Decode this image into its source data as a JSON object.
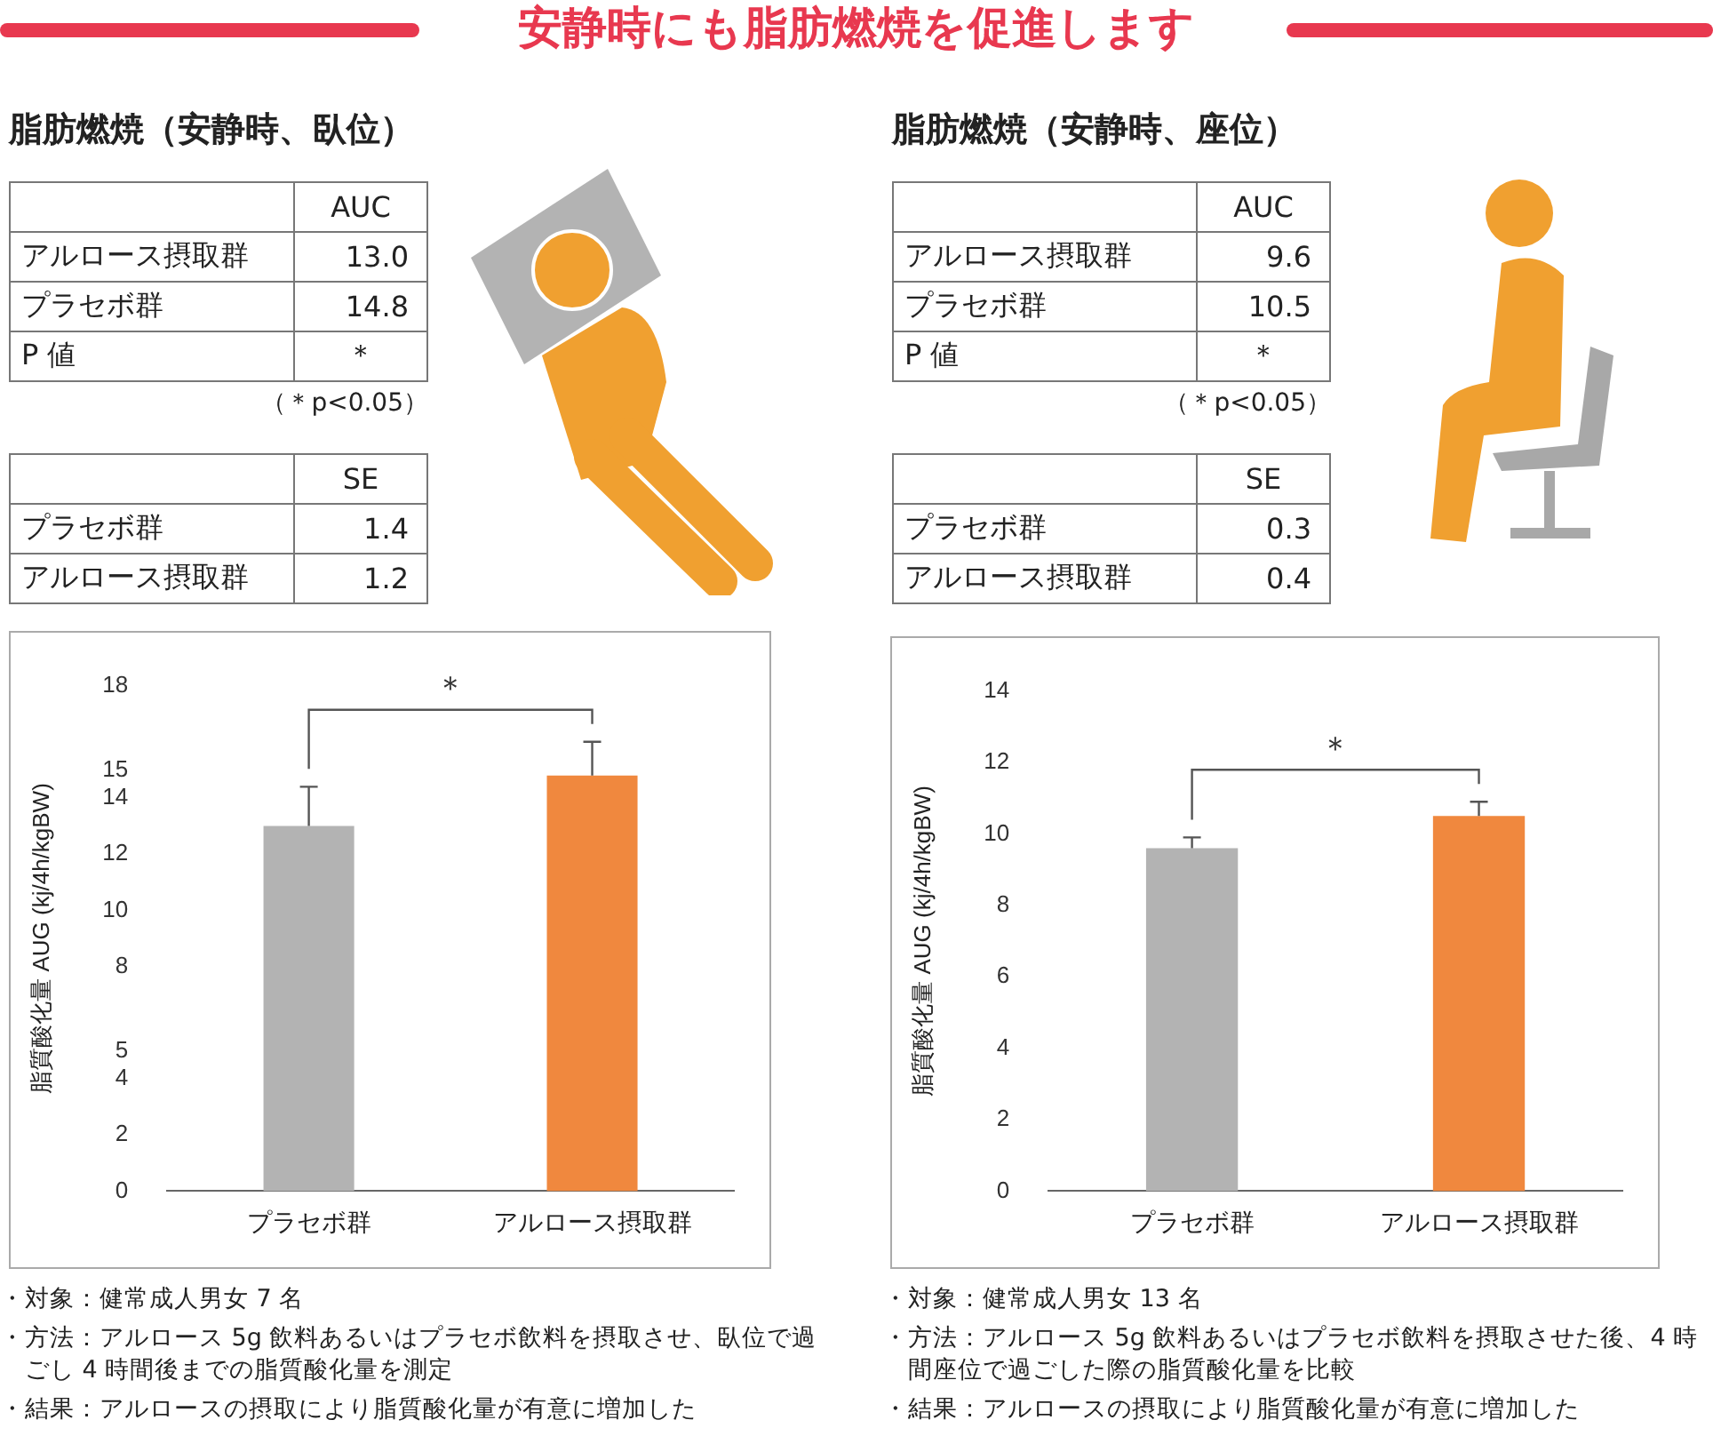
{
  "chart_data": [
    {
      "type": "other",
      "title": "安静時にも脂肪燃焼を促進します",
      "color": "#e8384f"
    },
    {
      "type": "other",
      "title": "脂肪燃焼（安静時、臥位）",
      "categories": [
        "AUC"
      ],
      "y_categories": [
        "アルロース摂取群",
        "プラセボ群",
        "P 値"
      ],
      "cell_labels": [
        [
          "13.0"
        ],
        [
          "14.8"
        ],
        [
          "＊"
        ]
      ],
      "annotations": [
        "（＊p<0.05）"
      ]
    },
    {
      "type": "other",
      "categories": [
        "SE"
      ],
      "y_categories": [
        "プラセボ群",
        "アルロース摂取群"
      ],
      "cell_labels": [
        [
          "1.4"
        ],
        [
          "1.2"
        ]
      ]
    },
    {
      "type": "bar",
      "ylabel": "脂質酸化量 AUG (kj/4h/kgBW)",
      "categories": [
        "プラセボ群",
        "アルロース摂取群"
      ],
      "values": [
        13.0,
        14.8
      ],
      "errors": [
        1.4,
        1.2
      ],
      "colors": [
        "#b3b3b3",
        "#f0883e"
      ],
      "ylim": [
        0,
        18
      ],
      "yticks": [
        0,
        2,
        4,
        5,
        8,
        10,
        12,
        14,
        15,
        18
      ],
      "grid": false,
      "legend": false,
      "annotations": [
        "＊",
        "・対象：健常成人男女 7 名",
        "・方法：アルロース 5g 飲料あるいはプラセボ飲料を摂取させ、臥位で過ごし 4 時間後までの脂質酸化量を測定",
        "・結果：アルロースの摂取により脂質酸化量が有意に増加した"
      ]
    },
    {
      "type": "other",
      "title": "脂肪燃焼（安静時、座位）",
      "categories": [
        "AUC"
      ],
      "y_categories": [
        "アルロース摂取群",
        "プラセボ群",
        "P 値"
      ],
      "cell_labels": [
        [
          "9.6"
        ],
        [
          "10.5"
        ],
        [
          "＊"
        ]
      ],
      "annotations": [
        "（＊p<0.05）"
      ]
    },
    {
      "type": "other",
      "categories": [
        "SE"
      ],
      "y_categories": [
        "プラセボ群",
        "アルロース摂取群"
      ],
      "cell_labels": [
        [
          "0.3"
        ],
        [
          "0.4"
        ]
      ]
    },
    {
      "type": "bar",
      "ylabel": "脂質酸化量 AUG (kj/4h/kgBW)",
      "categories": [
        "プラセボ群",
        "アルロース摂取群"
      ],
      "values": [
        9.6,
        10.5
      ],
      "errors": [
        0.3,
        0.4
      ],
      "colors": [
        "#b3b3b3",
        "#f0883e"
      ],
      "ylim": [
        0,
        14
      ],
      "yticks": [
        0,
        2,
        4,
        6,
        8,
        10,
        12,
        14
      ],
      "grid": false,
      "legend": false,
      "annotations": [
        "＊",
        "・対象：健常成人男女 13 名",
        "・方法：アルロース 5g 飲料あるいはプラセボ飲料を摂取させた後、4 時間座位で過ごした際の脂質酸化量を比較",
        "・結果：アルロースの摂取により脂質酸化量が有意に増加した"
      ]
    }
  ]
}
